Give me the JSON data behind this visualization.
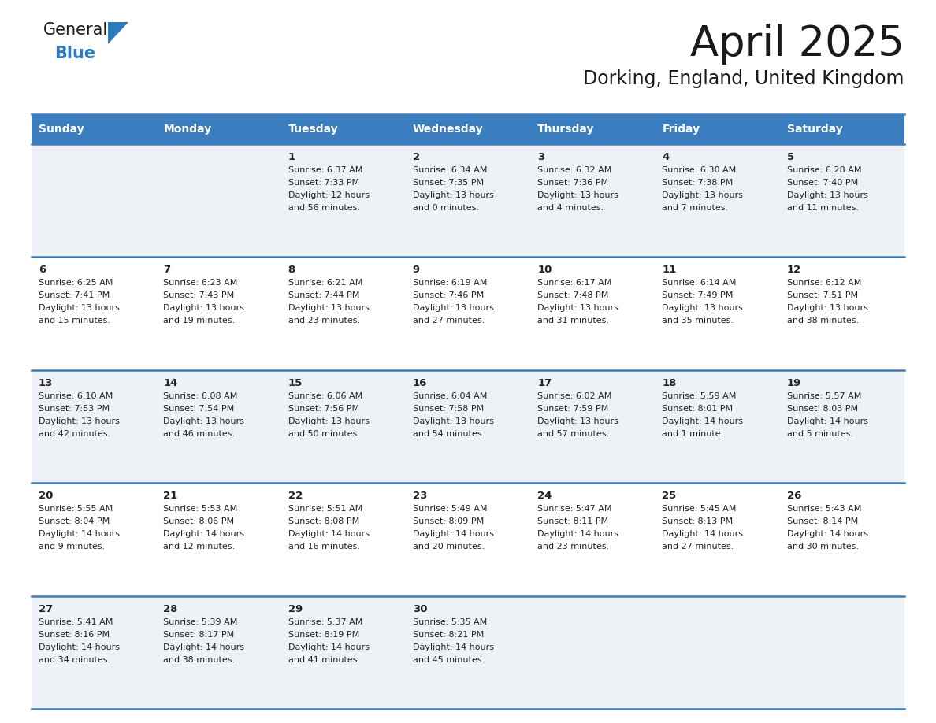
{
  "title": "April 2025",
  "subtitle": "Dorking, England, United Kingdom",
  "days_of_week": [
    "Sunday",
    "Monday",
    "Tuesday",
    "Wednesday",
    "Thursday",
    "Friday",
    "Saturday"
  ],
  "header_bg": "#3a7ebf",
  "header_text_color": "#ffffff",
  "cell_bg_light": "#eef2f7",
  "cell_bg_white": "#ffffff",
  "border_color": "#3a7ebf",
  "text_color": "#222222",
  "logo_general_color": "#1a1a1a",
  "logo_blue_color": "#2b7bbf",
  "logo_triangle_color": "#2b7bbf",
  "title_color": "#1a1a1a",
  "subtitle_color": "#1a1a1a",
  "calendar_data": [
    [
      {
        "day": "",
        "lines": []
      },
      {
        "day": "",
        "lines": []
      },
      {
        "day": "1",
        "lines": [
          "Sunrise: 6:37 AM",
          "Sunset: 7:33 PM",
          "Daylight: 12 hours",
          "and 56 minutes."
        ]
      },
      {
        "day": "2",
        "lines": [
          "Sunrise: 6:34 AM",
          "Sunset: 7:35 PM",
          "Daylight: 13 hours",
          "and 0 minutes."
        ]
      },
      {
        "day": "3",
        "lines": [
          "Sunrise: 6:32 AM",
          "Sunset: 7:36 PM",
          "Daylight: 13 hours",
          "and 4 minutes."
        ]
      },
      {
        "day": "4",
        "lines": [
          "Sunrise: 6:30 AM",
          "Sunset: 7:38 PM",
          "Daylight: 13 hours",
          "and 7 minutes."
        ]
      },
      {
        "day": "5",
        "lines": [
          "Sunrise: 6:28 AM",
          "Sunset: 7:40 PM",
          "Daylight: 13 hours",
          "and 11 minutes."
        ]
      }
    ],
    [
      {
        "day": "6",
        "lines": [
          "Sunrise: 6:25 AM",
          "Sunset: 7:41 PM",
          "Daylight: 13 hours",
          "and 15 minutes."
        ]
      },
      {
        "day": "7",
        "lines": [
          "Sunrise: 6:23 AM",
          "Sunset: 7:43 PM",
          "Daylight: 13 hours",
          "and 19 minutes."
        ]
      },
      {
        "day": "8",
        "lines": [
          "Sunrise: 6:21 AM",
          "Sunset: 7:44 PM",
          "Daylight: 13 hours",
          "and 23 minutes."
        ]
      },
      {
        "day": "9",
        "lines": [
          "Sunrise: 6:19 AM",
          "Sunset: 7:46 PM",
          "Daylight: 13 hours",
          "and 27 minutes."
        ]
      },
      {
        "day": "10",
        "lines": [
          "Sunrise: 6:17 AM",
          "Sunset: 7:48 PM",
          "Daylight: 13 hours",
          "and 31 minutes."
        ]
      },
      {
        "day": "11",
        "lines": [
          "Sunrise: 6:14 AM",
          "Sunset: 7:49 PM",
          "Daylight: 13 hours",
          "and 35 minutes."
        ]
      },
      {
        "day": "12",
        "lines": [
          "Sunrise: 6:12 AM",
          "Sunset: 7:51 PM",
          "Daylight: 13 hours",
          "and 38 minutes."
        ]
      }
    ],
    [
      {
        "day": "13",
        "lines": [
          "Sunrise: 6:10 AM",
          "Sunset: 7:53 PM",
          "Daylight: 13 hours",
          "and 42 minutes."
        ]
      },
      {
        "day": "14",
        "lines": [
          "Sunrise: 6:08 AM",
          "Sunset: 7:54 PM",
          "Daylight: 13 hours",
          "and 46 minutes."
        ]
      },
      {
        "day": "15",
        "lines": [
          "Sunrise: 6:06 AM",
          "Sunset: 7:56 PM",
          "Daylight: 13 hours",
          "and 50 minutes."
        ]
      },
      {
        "day": "16",
        "lines": [
          "Sunrise: 6:04 AM",
          "Sunset: 7:58 PM",
          "Daylight: 13 hours",
          "and 54 minutes."
        ]
      },
      {
        "day": "17",
        "lines": [
          "Sunrise: 6:02 AM",
          "Sunset: 7:59 PM",
          "Daylight: 13 hours",
          "and 57 minutes."
        ]
      },
      {
        "day": "18",
        "lines": [
          "Sunrise: 5:59 AM",
          "Sunset: 8:01 PM",
          "Daylight: 14 hours",
          "and 1 minute."
        ]
      },
      {
        "day": "19",
        "lines": [
          "Sunrise: 5:57 AM",
          "Sunset: 8:03 PM",
          "Daylight: 14 hours",
          "and 5 minutes."
        ]
      }
    ],
    [
      {
        "day": "20",
        "lines": [
          "Sunrise: 5:55 AM",
          "Sunset: 8:04 PM",
          "Daylight: 14 hours",
          "and 9 minutes."
        ]
      },
      {
        "day": "21",
        "lines": [
          "Sunrise: 5:53 AM",
          "Sunset: 8:06 PM",
          "Daylight: 14 hours",
          "and 12 minutes."
        ]
      },
      {
        "day": "22",
        "lines": [
          "Sunrise: 5:51 AM",
          "Sunset: 8:08 PM",
          "Daylight: 14 hours",
          "and 16 minutes."
        ]
      },
      {
        "day": "23",
        "lines": [
          "Sunrise: 5:49 AM",
          "Sunset: 8:09 PM",
          "Daylight: 14 hours",
          "and 20 minutes."
        ]
      },
      {
        "day": "24",
        "lines": [
          "Sunrise: 5:47 AM",
          "Sunset: 8:11 PM",
          "Daylight: 14 hours",
          "and 23 minutes."
        ]
      },
      {
        "day": "25",
        "lines": [
          "Sunrise: 5:45 AM",
          "Sunset: 8:13 PM",
          "Daylight: 14 hours",
          "and 27 minutes."
        ]
      },
      {
        "day": "26",
        "lines": [
          "Sunrise: 5:43 AM",
          "Sunset: 8:14 PM",
          "Daylight: 14 hours",
          "and 30 minutes."
        ]
      }
    ],
    [
      {
        "day": "27",
        "lines": [
          "Sunrise: 5:41 AM",
          "Sunset: 8:16 PM",
          "Daylight: 14 hours",
          "and 34 minutes."
        ]
      },
      {
        "day": "28",
        "lines": [
          "Sunrise: 5:39 AM",
          "Sunset: 8:17 PM",
          "Daylight: 14 hours",
          "and 38 minutes."
        ]
      },
      {
        "day": "29",
        "lines": [
          "Sunrise: 5:37 AM",
          "Sunset: 8:19 PM",
          "Daylight: 14 hours",
          "and 41 minutes."
        ]
      },
      {
        "day": "30",
        "lines": [
          "Sunrise: 5:35 AM",
          "Sunset: 8:21 PM",
          "Daylight: 14 hours",
          "and 45 minutes."
        ]
      },
      {
        "day": "",
        "lines": []
      },
      {
        "day": "",
        "lines": []
      },
      {
        "day": "",
        "lines": []
      }
    ]
  ]
}
